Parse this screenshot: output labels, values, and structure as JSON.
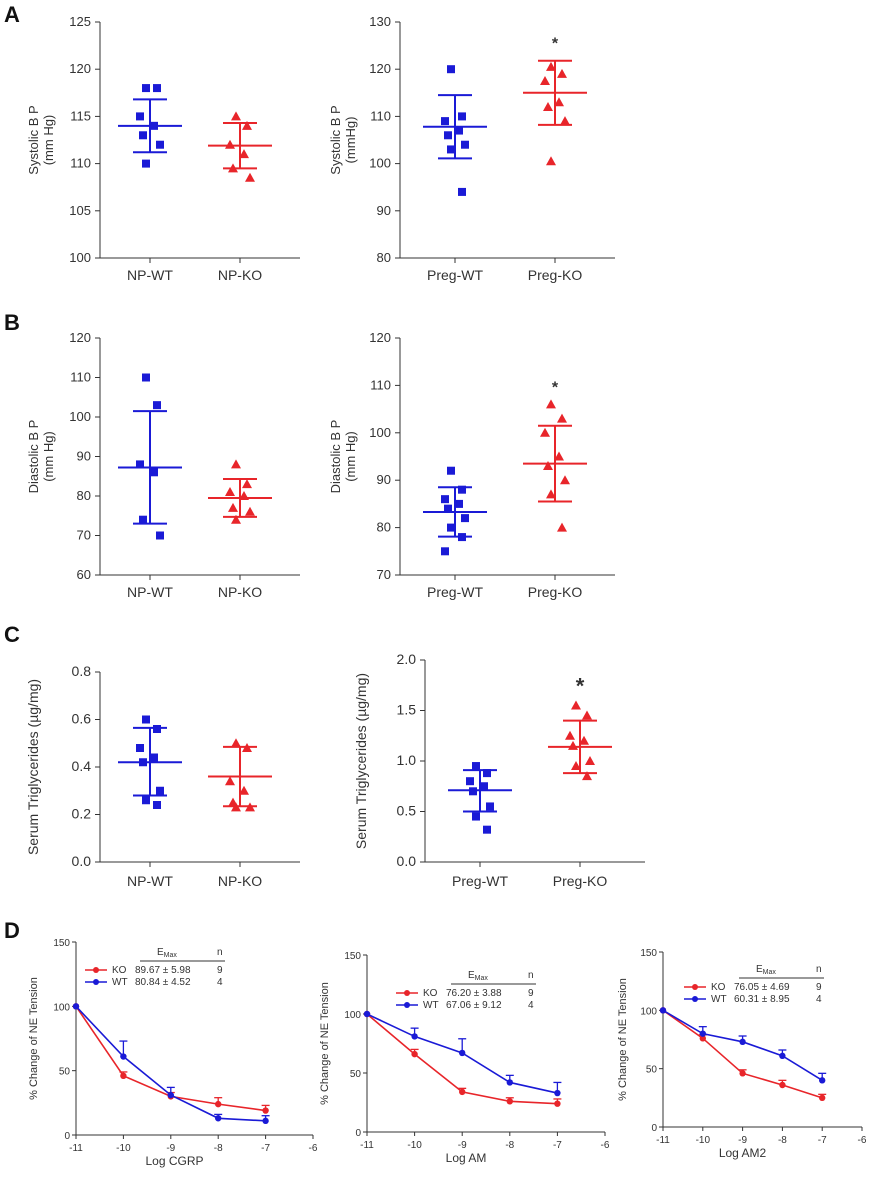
{
  "panels": {
    "a": "A",
    "b": "B",
    "c": "C",
    "d": "D"
  },
  "colors": {
    "wt": "#1a1ad6",
    "ko": "#e8252a",
    "axis": "#333333"
  },
  "chart_data": [
    {
      "id": "A1",
      "type": "scatter",
      "ylabel": [
        "Systolic B P",
        "(mm Hg)"
      ],
      "ylim": [
        100,
        125
      ],
      "yticks": [
        100,
        105,
        110,
        115,
        120,
        125
      ],
      "categories": [
        "NP-WT",
        "NP-KO"
      ],
      "series": [
        {
          "name": "NP-WT",
          "color": "wt",
          "marker": "square",
          "points": [
            118,
            118,
            115,
            114,
            113,
            112,
            110
          ],
          "mean": 114.0,
          "sd_upper": 116.8,
          "sd_lower": 111.2
        },
        {
          "name": "NP-KO",
          "color": "ko",
          "marker": "triangle",
          "points": [
            115,
            114,
            112,
            111,
            109.5,
            108.5
          ],
          "mean": 111.9,
          "sd_upper": 114.3,
          "sd_lower": 109.5
        }
      ]
    },
    {
      "id": "A2",
      "type": "scatter",
      "ylabel": [
        "Systolic B P",
        "(mmHg)"
      ],
      "ylim": [
        80,
        130
      ],
      "yticks": [
        80,
        90,
        100,
        110,
        120,
        130
      ],
      "categories": [
        "Preg-WT",
        "Preg-KO"
      ],
      "series": [
        {
          "name": "Preg-WT",
          "color": "wt",
          "marker": "square",
          "points": [
            120,
            110,
            109,
            107,
            106,
            104,
            103,
            94
          ],
          "mean": 107.8,
          "sd_upper": 114.5,
          "sd_lower": 101.1
        },
        {
          "name": "Preg-KO",
          "color": "ko",
          "marker": "triangle",
          "points": [
            120.5,
            119,
            117.5,
            113,
            112,
            109,
            100.5
          ],
          "mean": 115.0,
          "sd_upper": 121.8,
          "sd_lower": 108.2
        }
      ],
      "annotations": [
        "*"
      ]
    },
    {
      "id": "B1",
      "type": "scatter",
      "ylabel": [
        "Diastolic B P",
        "(mm Hg)"
      ],
      "ylim": [
        60,
        120
      ],
      "yticks": [
        60,
        70,
        80,
        90,
        100,
        110,
        120
      ],
      "categories": [
        "NP-WT",
        "NP-KO"
      ],
      "series": [
        {
          "name": "NP-WT",
          "color": "wt",
          "marker": "square",
          "points": [
            110,
            103,
            88,
            86,
            74,
            70
          ],
          "mean": 87.2,
          "sd_upper": 101.5,
          "sd_lower": 73.0
        },
        {
          "name": "NP-KO",
          "color": "ko",
          "marker": "triangle",
          "points": [
            88,
            83,
            81,
            80,
            77,
            76,
            74
          ],
          "mean": 79.5,
          "sd_upper": 84.3,
          "sd_lower": 74.7
        }
      ]
    },
    {
      "id": "B2",
      "type": "scatter",
      "ylabel": [
        "Diastolic B P",
        "(mm Hg)"
      ],
      "ylim": [
        70,
        120
      ],
      "yticks": [
        70,
        80,
        90,
        100,
        110,
        120
      ],
      "categories": [
        "Preg-WT",
        "Preg-KO"
      ],
      "series": [
        {
          "name": "Preg-WT",
          "color": "wt",
          "marker": "square",
          "points": [
            92,
            88,
            86,
            85,
            84,
            82,
            80,
            78,
            75
          ],
          "mean": 83.3,
          "sd_upper": 88.5,
          "sd_lower": 78.1
        },
        {
          "name": "Preg-KO",
          "color": "ko",
          "marker": "triangle",
          "points": [
            106,
            103,
            100,
            95,
            93,
            90,
            87,
            80
          ],
          "mean": 93.5,
          "sd_upper": 101.5,
          "sd_lower": 85.5
        }
      ],
      "annotations": [
        "*"
      ]
    },
    {
      "id": "C1",
      "type": "scatter",
      "ylabel": [
        "Serum Triglycerides (µg/mg)"
      ],
      "ylim": [
        0,
        0.8
      ],
      "yticks": [
        "0.0",
        "0.2",
        "0.4",
        "0.6",
        "0.8"
      ],
      "categories": [
        "NP-WT",
        "NP-KO"
      ],
      "series": [
        {
          "name": "NP-WT",
          "color": "wt",
          "marker": "square",
          "points": [
            0.6,
            0.56,
            0.48,
            0.44,
            0.42,
            0.3,
            0.26,
            0.24
          ],
          "mean": 0.42,
          "sd_upper": 0.565,
          "sd_lower": 0.28
        },
        {
          "name": "NP-KO",
          "color": "ko",
          "marker": "triangle",
          "points": [
            0.5,
            0.48,
            0.34,
            0.3,
            0.25,
            0.23,
            0.23
          ],
          "mean": 0.36,
          "sd_upper": 0.485,
          "sd_lower": 0.235
        }
      ]
    },
    {
      "id": "C2",
      "type": "scatter",
      "ylabel": [
        "Serum Triglycerides (µg/mg)"
      ],
      "ylim": [
        0,
        2.0
      ],
      "yticks": [
        "0.0",
        "0.5",
        "1.0",
        "1.5",
        "2.0"
      ],
      "categories": [
        "Preg-WT",
        "Preg-KO"
      ],
      "series": [
        {
          "name": "Preg-WT",
          "color": "wt",
          "marker": "square",
          "points": [
            0.95,
            0.88,
            0.8,
            0.75,
            0.7,
            0.55,
            0.45,
            0.32
          ],
          "mean": 0.71,
          "sd_upper": 0.91,
          "sd_lower": 0.5
        },
        {
          "name": "Preg-KO",
          "color": "ko",
          "marker": "triangle",
          "points": [
            1.55,
            1.45,
            1.25,
            1.2,
            1.15,
            1.0,
            0.95,
            0.85
          ],
          "mean": 1.14,
          "sd_upper": 1.4,
          "sd_lower": 0.88
        }
      ],
      "annotations": [
        "*"
      ]
    },
    {
      "id": "D1",
      "type": "line",
      "ylabel": "% Change of NE Tension",
      "xlabel": "Log CGRP",
      "xlim": [
        -11,
        -6
      ],
      "xticks": [
        -11,
        -10,
        -9,
        -8,
        -7,
        -6
      ],
      "ylim": [
        0,
        150
      ],
      "yticks": [
        0,
        50,
        100,
        150
      ],
      "legend_header": {
        "emax": "E",
        "emax_sub": "Max",
        "n": "n"
      },
      "series": [
        {
          "name": "KO",
          "color": "ko",
          "x": [
            -11,
            -10,
            -9,
            -8,
            -7
          ],
          "y": [
            100,
            46,
            30,
            24,
            19
          ],
          "err": [
            0,
            3,
            3,
            5,
            4
          ],
          "emax": "89.67 ± 5.98",
          "n": "9"
        },
        {
          "name": "WT",
          "color": "wt",
          "x": [
            -11,
            -10,
            -9,
            -8,
            -7
          ],
          "y": [
            100,
            61,
            31,
            13,
            11
          ],
          "err": [
            0,
            12,
            6,
            3,
            4
          ],
          "emax": "80.84 ± 4.52",
          "n": "4"
        }
      ]
    },
    {
      "id": "D2",
      "type": "line",
      "ylabel": "% Change of NE Tension",
      "xlabel": "Log AM",
      "xlim": [
        -11,
        -6
      ],
      "xticks": [
        -11,
        -10,
        -9,
        -8,
        -7,
        -6
      ],
      "ylim": [
        0,
        150
      ],
      "yticks": [
        0,
        50,
        100,
        150
      ],
      "legend_header": {
        "emax": "E",
        "emax_sub": "Max",
        "n": "n"
      },
      "series": [
        {
          "name": "KO",
          "color": "ko",
          "x": [
            -11,
            -10,
            -9,
            -8,
            -7
          ],
          "y": [
            100,
            66,
            34,
            26,
            24
          ],
          "err": [
            0,
            4,
            3,
            3,
            4
          ],
          "emax": "76.20 ± 3.88",
          "n": "9"
        },
        {
          "name": "WT",
          "color": "wt",
          "x": [
            -11,
            -10,
            -9,
            -8,
            -7
          ],
          "y": [
            100,
            81,
            67,
            42,
            33
          ],
          "err": [
            0,
            7,
            12,
            6,
            9
          ],
          "emax": "67.06 ± 9.12",
          "n": "4"
        }
      ]
    },
    {
      "id": "D3",
      "type": "line",
      "ylabel": "% Change of NE Tension",
      "xlabel": "Log AM2",
      "xlim": [
        -11,
        -6
      ],
      "xticks": [
        -11,
        -10,
        -9,
        -8,
        -7,
        -6
      ],
      "ylim": [
        0,
        150
      ],
      "yticks": [
        0,
        50,
        100,
        150
      ],
      "legend_header": {
        "emax": "E",
        "emax_sub": "Max",
        "n": "n"
      },
      "series": [
        {
          "name": "KO",
          "color": "ko",
          "x": [
            -11,
            -10,
            -9,
            -8,
            -7
          ],
          "y": [
            100,
            76,
            46,
            36,
            25
          ],
          "err": [
            0,
            3,
            3,
            4,
            3
          ],
          "emax": "76.05 ± 4.69",
          "n": "9"
        },
        {
          "name": "WT",
          "color": "wt",
          "x": [
            -11,
            -10,
            -9,
            -8,
            -7
          ],
          "y": [
            100,
            80,
            73,
            61,
            40
          ],
          "err": [
            0,
            6,
            5,
            5,
            6
          ],
          "emax": "60.31 ± 8.95",
          "n": "4"
        }
      ]
    }
  ]
}
